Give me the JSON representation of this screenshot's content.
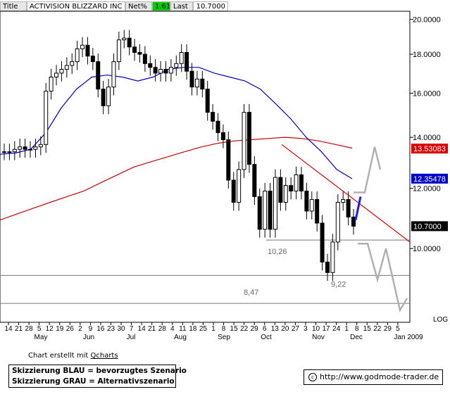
{
  "header": {
    "title_label": "Title",
    "title_value": "ACTIVISION BLIZZARD INC",
    "net_label": "Net%",
    "net_value": "1.61",
    "net_color": "#00cc00",
    "last_label": "Last",
    "last_value": "10.7000"
  },
  "chart_data": {
    "type": "candlestick",
    "ylim": [
      8.0,
      20.5
    ],
    "y_ticks": [
      "20.0000",
      "18.0000",
      "16.0000",
      "14.0000",
      "12.0000",
      "10.0000"
    ],
    "y_scale_label": "LOG",
    "x_day_ticks": [
      "14",
      "21",
      "28",
      "5",
      "12",
      "19",
      "26",
      "2",
      "9",
      "16",
      "23",
      "30",
      "7",
      "14",
      "21",
      "28",
      "4",
      "11",
      "18",
      "25",
      "1",
      "8",
      "15",
      "22",
      "29",
      "6",
      "13",
      "20",
      "27",
      "3",
      "10",
      "17",
      "24",
      "1",
      "8",
      "15",
      "22",
      "29",
      "5"
    ],
    "x_month_labels": [
      "May",
      "Jun",
      "Jul",
      "Aug",
      "Sep",
      "Oct",
      "Nov",
      "Dec",
      "Jan 2009"
    ],
    "price_labels": [
      {
        "value": "13.53083",
        "color": "#dd0000"
      },
      {
        "value": "12.35478",
        "color": "#0000cc"
      },
      {
        "value": "10.7000",
        "color": "#000000"
      }
    ],
    "annotations": [
      "10,26",
      "9,22",
      "8,47"
    ],
    "support_levels": [
      10.26,
      9.22,
      8.47
    ],
    "price_series": [
      13.4,
      13.4,
      13.5,
      13.6,
      13.5,
      13.5,
      13.6,
      13.7,
      16.1,
      16.8,
      17.0,
      17.2,
      17.4,
      17.6,
      18.3,
      18.5,
      17.9,
      17.6,
      16.2,
      15.4,
      16.3,
      17.6,
      18.8,
      18.9,
      18.4,
      18.1,
      18.0,
      17.5,
      17.3,
      17.0,
      17.2,
      17.0,
      17.3,
      17.5,
      18.1,
      17.1,
      16.3,
      16.7,
      16.2,
      15.1,
      14.7,
      14.2,
      13.9,
      12.3,
      11.5,
      12.7,
      15.1,
      12.9,
      11.7,
      10.6,
      11.9,
      10.6,
      12.4,
      11.5,
      12.1,
      11.9,
      12.5,
      11.9,
      11.2,
      11.6,
      10.8,
      9.6,
      9.3,
      10.2,
      11.5,
      11.6,
      11.0,
      10.7
    ],
    "sma_long": {
      "color": "#cc0000",
      "values": [
        10.9,
        11.1,
        11.3,
        11.5,
        11.7,
        11.9,
        12.2,
        12.5,
        12.8,
        13.0,
        13.2,
        13.4,
        13.6,
        13.75,
        13.85,
        13.9,
        13.95,
        14.0,
        13.95,
        13.85,
        13.7,
        13.55
      ]
    },
    "sma_short": {
      "color": "#0000cc",
      "values": [
        13.3,
        13.35,
        13.5,
        14.2,
        15.3,
        16.2,
        16.8,
        16.9,
        16.8,
        16.6,
        16.8,
        17.2,
        17.3,
        17.3,
        17.0,
        16.8,
        16.6,
        16.2,
        15.5,
        14.8,
        14.0,
        13.4,
        12.7,
        12.35
      ]
    },
    "scenarios": [
      "Skizzierung BLAU = bevorzugtes Szenario",
      "Skizzierung GRAU = Alternativszenario"
    ]
  },
  "footer": {
    "credit_prefix": "Chart erstellt mit ",
    "credit_link": "Qcharts",
    "url": "http://www.godmode-trader.de",
    "cc_glyph": "c"
  }
}
